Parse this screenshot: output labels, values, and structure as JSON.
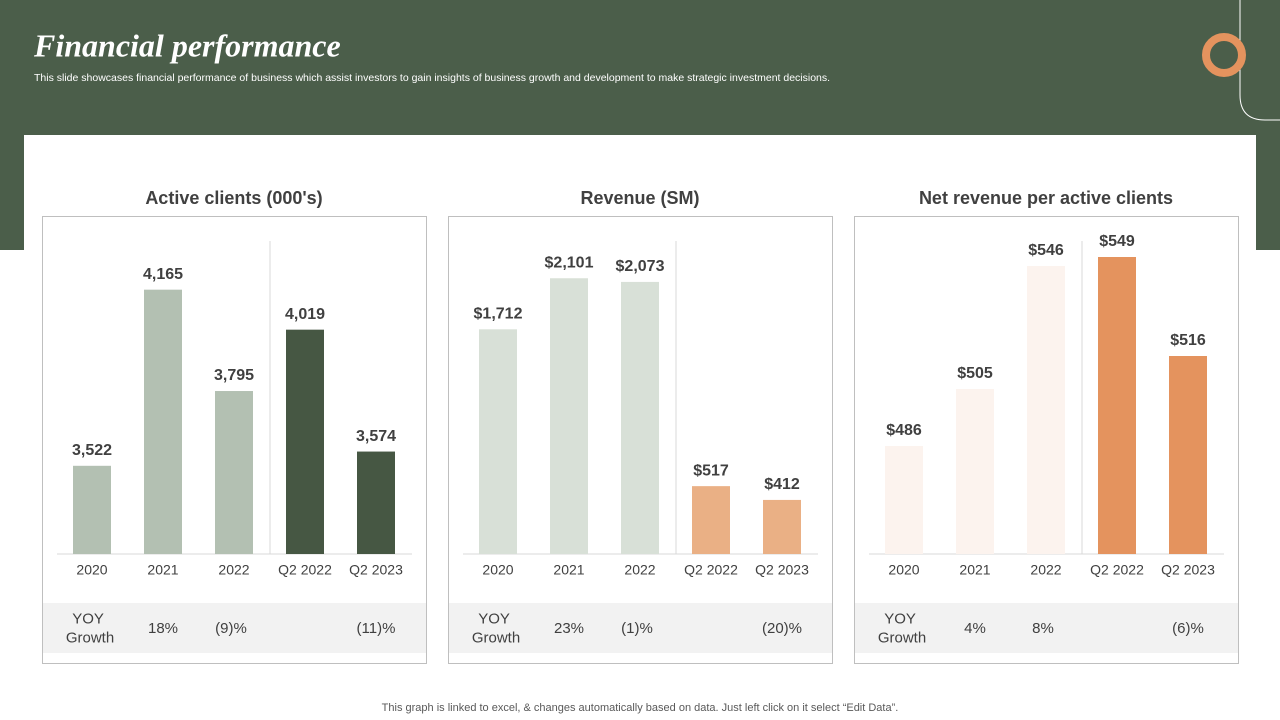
{
  "header": {
    "title": "Financial performance",
    "subtitle": "This slide showcases financial performance of business which assist investors to gain insights of business growth and development to make strategic investment decisions."
  },
  "footer": "This graph is linked to excel,  & changes automatically based on data. Just left click on it select “Edit Data”.",
  "chart_data": [
    {
      "type": "bar",
      "title": "Active clients (000's)",
      "categories": [
        "2020",
        "2021",
        "2022",
        "Q2 2022",
        "Q2 2023"
      ],
      "values": [
        3522,
        4165,
        3795,
        4019,
        3574
      ],
      "value_labels": [
        "3,522",
        "4,165",
        "3,795",
        "4,019",
        "3,574"
      ],
      "colors": [
        "#b3c0b2",
        "#b3c0b2",
        "#b3c0b2",
        "#465743",
        "#465743"
      ],
      "ylim": [
        3200,
        4350
      ],
      "growth_label": "YOY Growth",
      "growth": [
        null,
        "18%",
        "(9)%",
        null,
        "(11)%"
      ]
    },
    {
      "type": "bar",
      "title": "Revenue (SM)",
      "categories": [
        "2020",
        "2021",
        "2022",
        "Q2 2022",
        "Q2 2023"
      ],
      "values": [
        1712,
        2101,
        2073,
        517,
        412
      ],
      "value_labels": [
        "$1,712",
        "$2,101",
        "$2,073",
        "$517",
        "$412"
      ],
      "colors": [
        "#d8e0d7",
        "#d8e0d7",
        "#d8e0d7",
        "#eab085",
        "#eab085"
      ],
      "ylim": [
        0,
        2400
      ],
      "growth_label": "YOY Growth",
      "growth": [
        null,
        "23%",
        "(1)%",
        null,
        "(20)%"
      ]
    },
    {
      "type": "bar",
      "title": "Net revenue per active clients",
      "categories": [
        "2020",
        "2021",
        "2022",
        "Q2 2022",
        "Q2 2023"
      ],
      "values": [
        486,
        505,
        546,
        549,
        516
      ],
      "value_labels": [
        "$486",
        "$505",
        "$546",
        "$549",
        "$516"
      ],
      "colors": [
        "#fcf3ee",
        "#fcf3ee",
        "#fcf3ee",
        "#e4935e",
        "#e4935e"
      ],
      "ylim": [
        450,
        555
      ],
      "growth_label": "YOY Growth",
      "growth": [
        null,
        "4%",
        "8%",
        null,
        "(6)%"
      ]
    }
  ]
}
